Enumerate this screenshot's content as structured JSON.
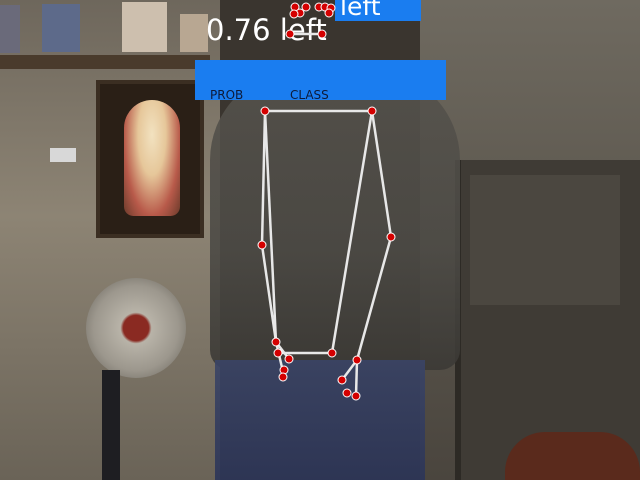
{
  "overlay": {
    "top_label": "left",
    "probability_readout": "0.76 left",
    "header_prob": "PROB",
    "header_class": "CLASS"
  },
  "colors": {
    "panel_blue": "#1a7df0",
    "skeleton_line": "#e8e8e8",
    "landmark_dot": "#d40000"
  }
}
